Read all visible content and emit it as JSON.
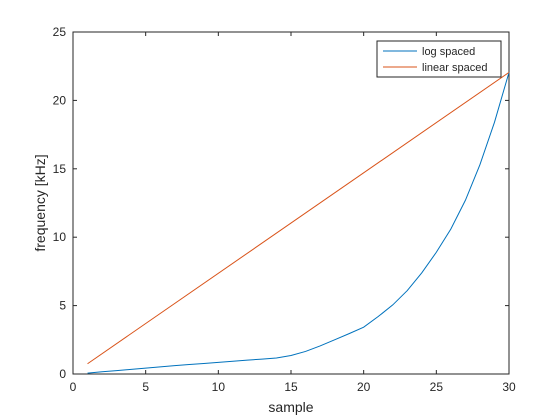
{
  "chart_data": {
    "type": "line",
    "xlabel": "sample",
    "ylabel": "frequency [kHz]",
    "xlim": [
      0,
      30
    ],
    "ylim": [
      0,
      25
    ],
    "xticks": [
      0,
      5,
      10,
      15,
      20,
      25,
      30
    ],
    "yticks": [
      0,
      5,
      10,
      15,
      20,
      25
    ],
    "grid": false,
    "legend": {
      "placement": "top-right",
      "box": true
    },
    "series": [
      {
        "name": "log spaced",
        "color": "#0072BD",
        "x": [
          1,
          2,
          3,
          4,
          5,
          6,
          7,
          8,
          9,
          10,
          11,
          12,
          13,
          14,
          15,
          16,
          17,
          18,
          19,
          20,
          21,
          22,
          23,
          24,
          25,
          26,
          27,
          28,
          29,
          30
        ],
        "y": [
          0.06,
          0.16,
          0.25,
          0.34,
          0.43,
          0.52,
          0.61,
          0.69,
          0.77,
          0.85,
          0.93,
          1.01,
          1.09,
          1.17,
          1.35,
          1.65,
          2.05,
          2.5,
          2.95,
          3.42,
          4.2,
          5.05,
          6.1,
          7.4,
          8.9,
          10.6,
          12.7,
          15.3,
          18.4,
          22.05
        ]
      },
      {
        "name": "linear spaced",
        "color": "#D95319",
        "x": [
          1,
          30
        ],
        "y": [
          0.75,
          22.05
        ]
      }
    ]
  }
}
